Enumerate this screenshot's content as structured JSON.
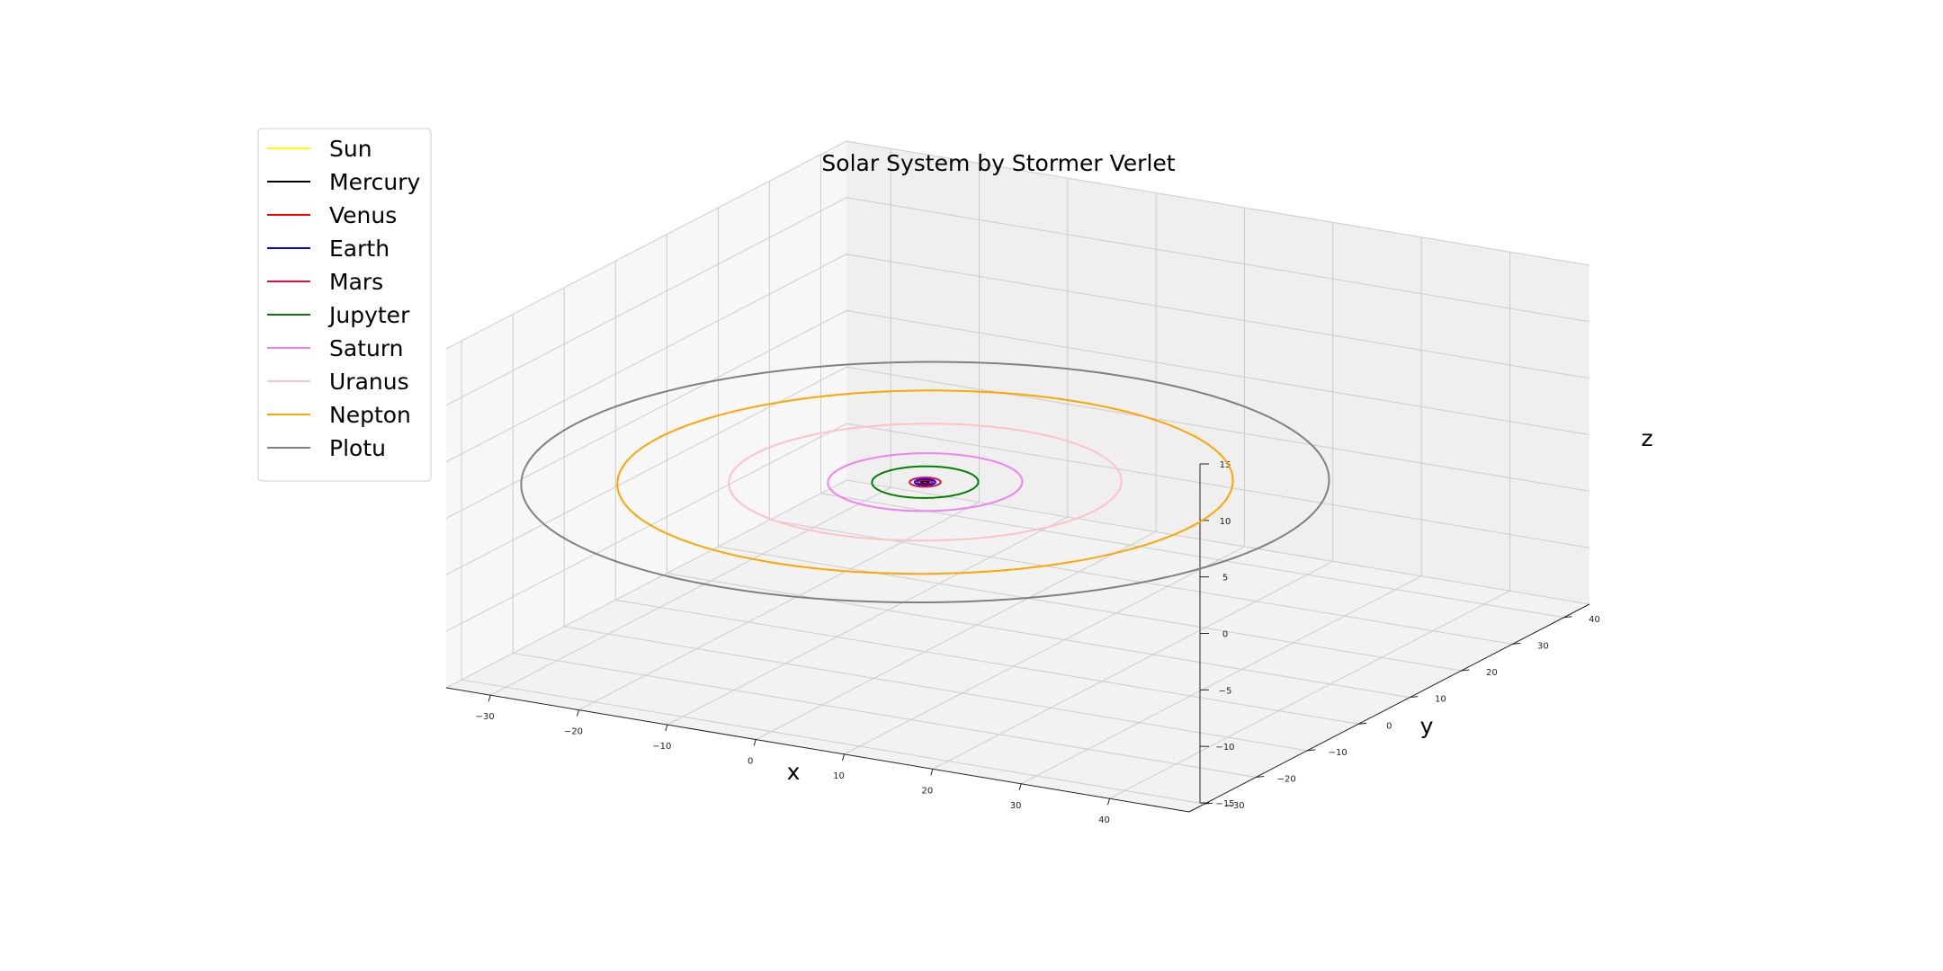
{
  "chart_data": {
    "type": "line",
    "projection": "3d",
    "title": "Solar System by Stormer Verlet",
    "xlabel": "x",
    "ylabel": "y",
    "zlabel": "z",
    "xticks": [
      -30,
      -20,
      -10,
      0,
      10,
      20,
      30,
      40
    ],
    "yticks": [
      -30,
      -20,
      -10,
      0,
      10,
      20,
      30,
      40
    ],
    "zticks": [
      -15,
      -10,
      -5,
      0,
      5,
      10,
      15
    ],
    "xlim": [
      -35,
      49
    ],
    "ylim": [
      -33,
      45
    ],
    "zlim": [
      -15,
      15
    ],
    "grid": true,
    "legend_position": "upper-left",
    "series": [
      {
        "name": "Sun",
        "color": "#ffff00",
        "orbit_radius_au": 0.0
      },
      {
        "name": "Mercury",
        "color": "#000000",
        "orbit_radius_au": 0.39
      },
      {
        "name": "Venus",
        "color": "#ff0000",
        "orbit_radius_au": 0.72
      },
      {
        "name": "Earth",
        "color": "#0000ff",
        "orbit_radius_au": 1.0
      },
      {
        "name": "Mars",
        "color": "#dc143c",
        "orbit_radius_au": 1.52
      },
      {
        "name": "Jupyter",
        "color": "#008000",
        "orbit_radius_au": 5.2
      },
      {
        "name": "Saturn",
        "color": "#ee82ee",
        "orbit_radius_au": 9.5
      },
      {
        "name": "Uranus",
        "color": "#ffc0cb",
        "orbit_radius_au": 19.2
      },
      {
        "name": "Nepton",
        "color": "#ffa500",
        "orbit_radius_au": 30.1
      },
      {
        "name": "Plotu",
        "color": "#808080",
        "orbit_radius_au": 39.5
      }
    ]
  }
}
